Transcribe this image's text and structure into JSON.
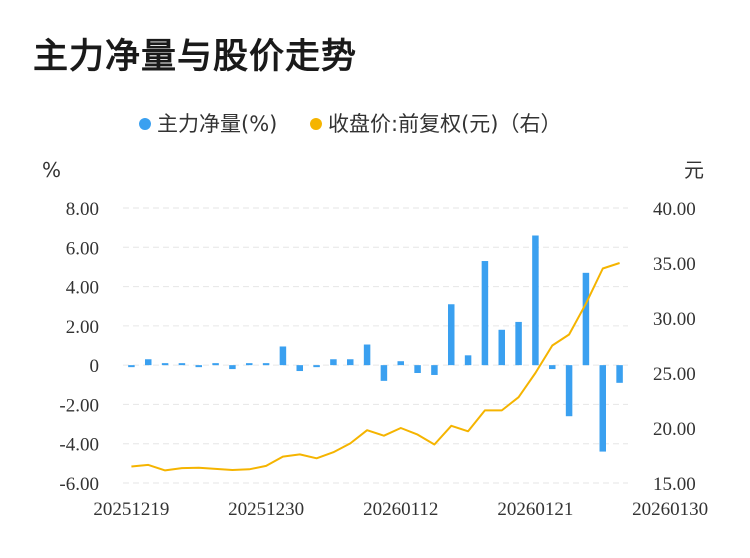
{
  "title": "主力净量与股价走势",
  "colors": {
    "bar": "#3aa0f0",
    "line": "#f5b400",
    "grid": "#e6e6e6"
  },
  "chart_data": {
    "type": "bar+line",
    "title": "主力净量与股价走势",
    "legend": {
      "placement": "top-center",
      "entries": [
        "主力净量(%)",
        "收盘价:前复权(元)（右）"
      ]
    },
    "left_axis": {
      "unit": "%",
      "ylim": [
        -6,
        8
      ],
      "ticks": [
        8,
        6,
        4,
        2,
        0,
        -2,
        -4,
        -6
      ],
      "tick_labels": [
        "8.00",
        "6.00",
        "4.00",
        "2.00",
        "0",
        "-2.00",
        "-4.00",
        "-6.00"
      ]
    },
    "right_axis": {
      "unit": "元",
      "ylim": [
        15,
        40
      ],
      "ticks": [
        40,
        35,
        30,
        25,
        20,
        15
      ],
      "tick_labels": [
        "40.00",
        "35.00",
        "30.00",
        "25.00",
        "20.00",
        "15.00"
      ]
    },
    "x_tick_labels": [
      "20251219",
      "20251230",
      "20260112",
      "20260121",
      "20260130"
    ],
    "x_tick_positions": [
      0,
      8,
      16,
      24,
      32
    ],
    "grid": true,
    "series": [
      {
        "name": "主力净量(%)",
        "axis": "left",
        "type": "bar",
        "values": [
          -0.1,
          0.3,
          0.0,
          0.1,
          -0.1,
          0.05,
          -0.2,
          0.05,
          0.1,
          0.95,
          -0.3,
          -0.1,
          0.3,
          0.3,
          1.05,
          -0.8,
          0.2,
          -0.4,
          -0.5,
          3.1,
          0.5,
          5.3,
          1.8,
          2.2,
          6.6,
          -0.2,
          -2.6,
          4.7,
          -4.4,
          -0.9
        ]
      },
      {
        "name": "收盘价:前复权(元)（右）",
        "axis": "right",
        "type": "line",
        "values": [
          16.5,
          16.65,
          16.15,
          16.35,
          16.38,
          16.28,
          16.18,
          16.25,
          16.55,
          17.4,
          17.6,
          17.25,
          17.8,
          18.6,
          19.8,
          19.3,
          20.0,
          19.4,
          18.5,
          20.2,
          19.7,
          21.6,
          21.6,
          22.8,
          25.0,
          27.5,
          28.5,
          31.3,
          34.5,
          35.0
        ]
      }
    ]
  }
}
